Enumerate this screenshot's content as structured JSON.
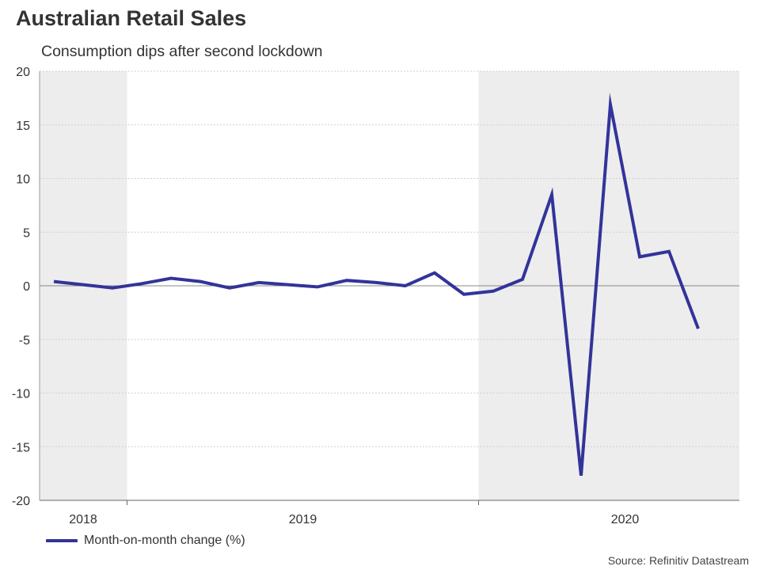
{
  "header": {
    "title": "Australian Retail Sales",
    "subtitle": "Consumption dips after second lockdown"
  },
  "legend": {
    "label": "Month-on-month change (%)"
  },
  "source": "Source: Refinitiv Datastream",
  "colors": {
    "line": "#33339a",
    "shade": "#ededee",
    "zero": "#888888",
    "grid": "#d0d0d0"
  },
  "chart_data": {
    "type": "line",
    "title": "Australian Retail Sales",
    "subtitle": "Consumption dips after second lockdown",
    "xlabel": "",
    "ylabel": "",
    "ylim": [
      -20,
      20
    ],
    "yticks": [
      20,
      15,
      10,
      5,
      0,
      -5,
      -10,
      -15,
      -20
    ],
    "x_tick_labels": [
      {
        "label": "2018",
        "month_index": 1
      },
      {
        "label": "2019",
        "month_index": 8.5
      },
      {
        "label": "2020",
        "month_index": 19.5
      }
    ],
    "year_boundaries": [
      2.5,
      14.5
    ],
    "shaded_years": [
      "2018",
      "2020"
    ],
    "series": [
      {
        "name": "Month-on-month change (%)",
        "values": [
          0.4,
          0.1,
          -0.2,
          0.2,
          0.7,
          0.4,
          -0.2,
          0.3,
          0.1,
          -0.1,
          0.5,
          0.3,
          0.0,
          1.2,
          -0.8,
          -0.5,
          0.6,
          8.5,
          -17.7,
          16.9,
          2.7,
          3.2,
          -4.0
        ]
      }
    ]
  }
}
